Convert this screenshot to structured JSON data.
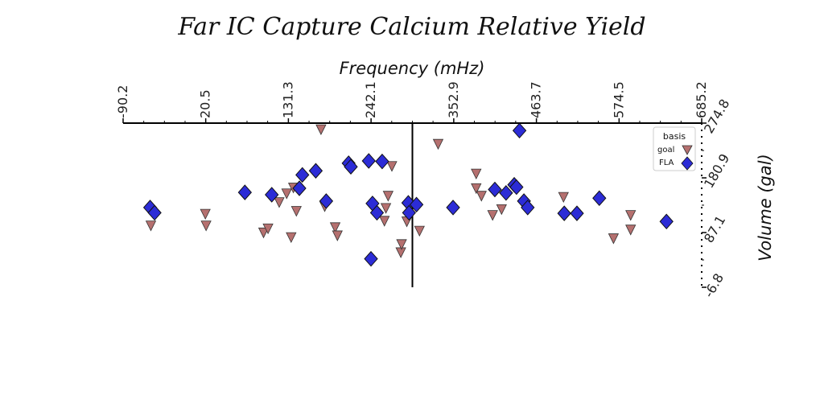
{
  "chart_data": {
    "type": "scatter",
    "title": "Far IC Capture Calcium Relative Yield",
    "xlabel": "Frequency (mHz)",
    "ylabel": "Volume (gal)",
    "xlim": [
      -90.2,
      685.2
    ],
    "ylim": [
      -6.8,
      274.8
    ],
    "xticks": [
      "-90.2",
      "20.5",
      "131.3",
      "242.1",
      "352.9",
      "463.7",
      "574.5",
      "685.2"
    ],
    "yticks": [
      "-6.8",
      "87.1",
      "180.9",
      "274.8"
    ],
    "x_axis_position": "top",
    "y_axis_position": "right",
    "grid": false,
    "legend": {
      "title": "basis",
      "placement": "top-right"
    },
    "colors": {
      "goal": "#b5706f",
      "FLA": "#2c2cd6"
    },
    "series": [
      {
        "name": "goal",
        "marker": "triangle-down",
        "points": [
          [
            -53,
            100
          ],
          [
            20,
            120
          ],
          [
            21,
            100
          ],
          [
            98,
            88
          ],
          [
            104,
            95
          ],
          [
            119,
            140
          ],
          [
            129,
            155
          ],
          [
            135,
            80
          ],
          [
            138,
            165
          ],
          [
            142,
            125
          ],
          [
            175,
            265
          ],
          [
            180,
            133
          ],
          [
            194,
            97
          ],
          [
            197,
            83
          ],
          [
            260,
            108
          ],
          [
            262,
            130
          ],
          [
            265,
            151
          ],
          [
            270,
            202
          ],
          [
            282,
            54
          ],
          [
            283,
            68
          ],
          [
            290,
            107
          ],
          [
            307,
            91
          ],
          [
            332,
            240
          ],
          [
            383,
            189
          ],
          [
            383,
            164
          ],
          [
            390,
            151
          ],
          [
            405,
            118
          ],
          [
            417,
            128
          ],
          [
            500,
            149
          ],
          [
            567,
            78
          ],
          [
            590,
            118
          ],
          [
            590,
            93
          ]
        ]
      },
      {
        "name": "FLA",
        "marker": "diamond",
        "points": [
          [
            -54,
            130
          ],
          [
            -48,
            121
          ],
          [
            73,
            156
          ],
          [
            109,
            152
          ],
          [
            146,
            163
          ],
          [
            150,
            186
          ],
          [
            168,
            193
          ],
          [
            182,
            141
          ],
          [
            212,
            206
          ],
          [
            215,
            200
          ],
          [
            239,
            210
          ],
          [
            242,
            42
          ],
          [
            244,
            137
          ],
          [
            250,
            121
          ],
          [
            257,
            209
          ],
          [
            292,
            138
          ],
          [
            293,
            121
          ],
          [
            303,
            135
          ],
          [
            352,
            130
          ],
          [
            408,
            161
          ],
          [
            423,
            155
          ],
          [
            434,
            169
          ],
          [
            437,
            165
          ],
          [
            441,
            262
          ],
          [
            447,
            141
          ],
          [
            452,
            130
          ],
          [
            501,
            120
          ],
          [
            518,
            120
          ],
          [
            548,
            146
          ],
          [
            638,
            106
          ]
        ]
      }
    ]
  }
}
